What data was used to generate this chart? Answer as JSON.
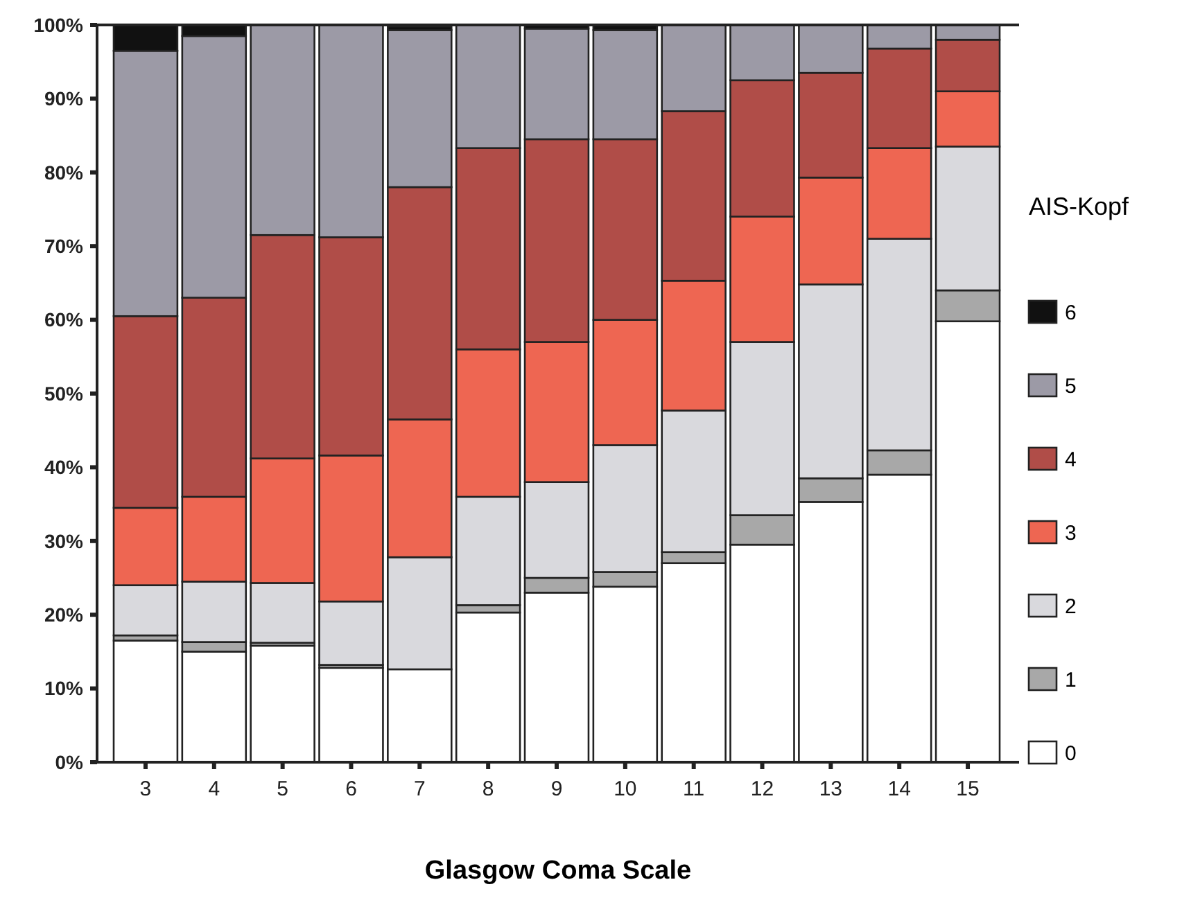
{
  "chart_data": {
    "type": "bar",
    "stacked": true,
    "xlabel": "Glasgow Coma Scale",
    "legend_title": "AIS-Kopf",
    "legend": "right",
    "categories": [
      "3",
      "4",
      "5",
      "6",
      "7",
      "8",
      "9",
      "10",
      "11",
      "12",
      "13",
      "14",
      "15"
    ],
    "ylim": [
      0,
      100
    ],
    "yticks": [
      {
        "value": 0,
        "label": "0%"
      },
      {
        "value": 10,
        "label": "10%"
      },
      {
        "value": 20,
        "label": "20%"
      },
      {
        "value": 30,
        "label": "30%"
      },
      {
        "value": 40,
        "label": "40%"
      },
      {
        "value": 50,
        "label": "50%"
      },
      {
        "value": 60,
        "label": "60%"
      },
      {
        "value": 70,
        "label": "70%"
      },
      {
        "value": 80,
        "label": "80%"
      },
      {
        "value": 90,
        "label": "90%"
      },
      {
        "value": 100,
        "label": "100%"
      }
    ],
    "grid": false,
    "series": [
      {
        "name": "0",
        "color": "#ffffff",
        "values": [
          16.5,
          15,
          15.8,
          12.8,
          12.6,
          20.3,
          23,
          23.8,
          27,
          29.5,
          35.3,
          39,
          59.8
        ]
      },
      {
        "name": "1",
        "color": "#a8a8a8",
        "values": [
          0.7,
          1.3,
          0.4,
          0.4,
          null,
          1,
          2,
          2,
          1.5,
          4,
          3.2,
          3.3,
          4.2
        ]
      },
      {
        "name": "2",
        "color": "#d9d9dd",
        "values": [
          6.8,
          8.2,
          8.1,
          8.6,
          15.2,
          14.7,
          13,
          17.2,
          19.2,
          23.5,
          26.3,
          28.7,
          19.5
        ]
      },
      {
        "name": "3",
        "color": "#ee6652",
        "values": [
          10.5,
          11.5,
          16.9,
          19.8,
          18.7,
          20,
          19,
          17,
          17.6,
          17,
          14.5,
          12.3,
          7.5
        ]
      },
      {
        "name": "4",
        "color": "#b04d48",
        "values": [
          26,
          27,
          30.3,
          29.6,
          31.5,
          27.3,
          27.5,
          24.5,
          23,
          18.5,
          14.2,
          13.5,
          7
        ]
      },
      {
        "name": "5",
        "color": "#9c9aa6",
        "values": [
          36,
          35.5,
          28.5,
          28.8,
          21.3,
          16.7,
          15,
          14.8,
          11.7,
          7.5,
          6.5,
          3.2,
          2
        ]
      },
      {
        "name": "6",
        "color": "#111111",
        "values": [
          3.5,
          1.5,
          0,
          0,
          0.5,
          0,
          0.5,
          0.7,
          0,
          0,
          0,
          0,
          0
        ]
      }
    ]
  }
}
